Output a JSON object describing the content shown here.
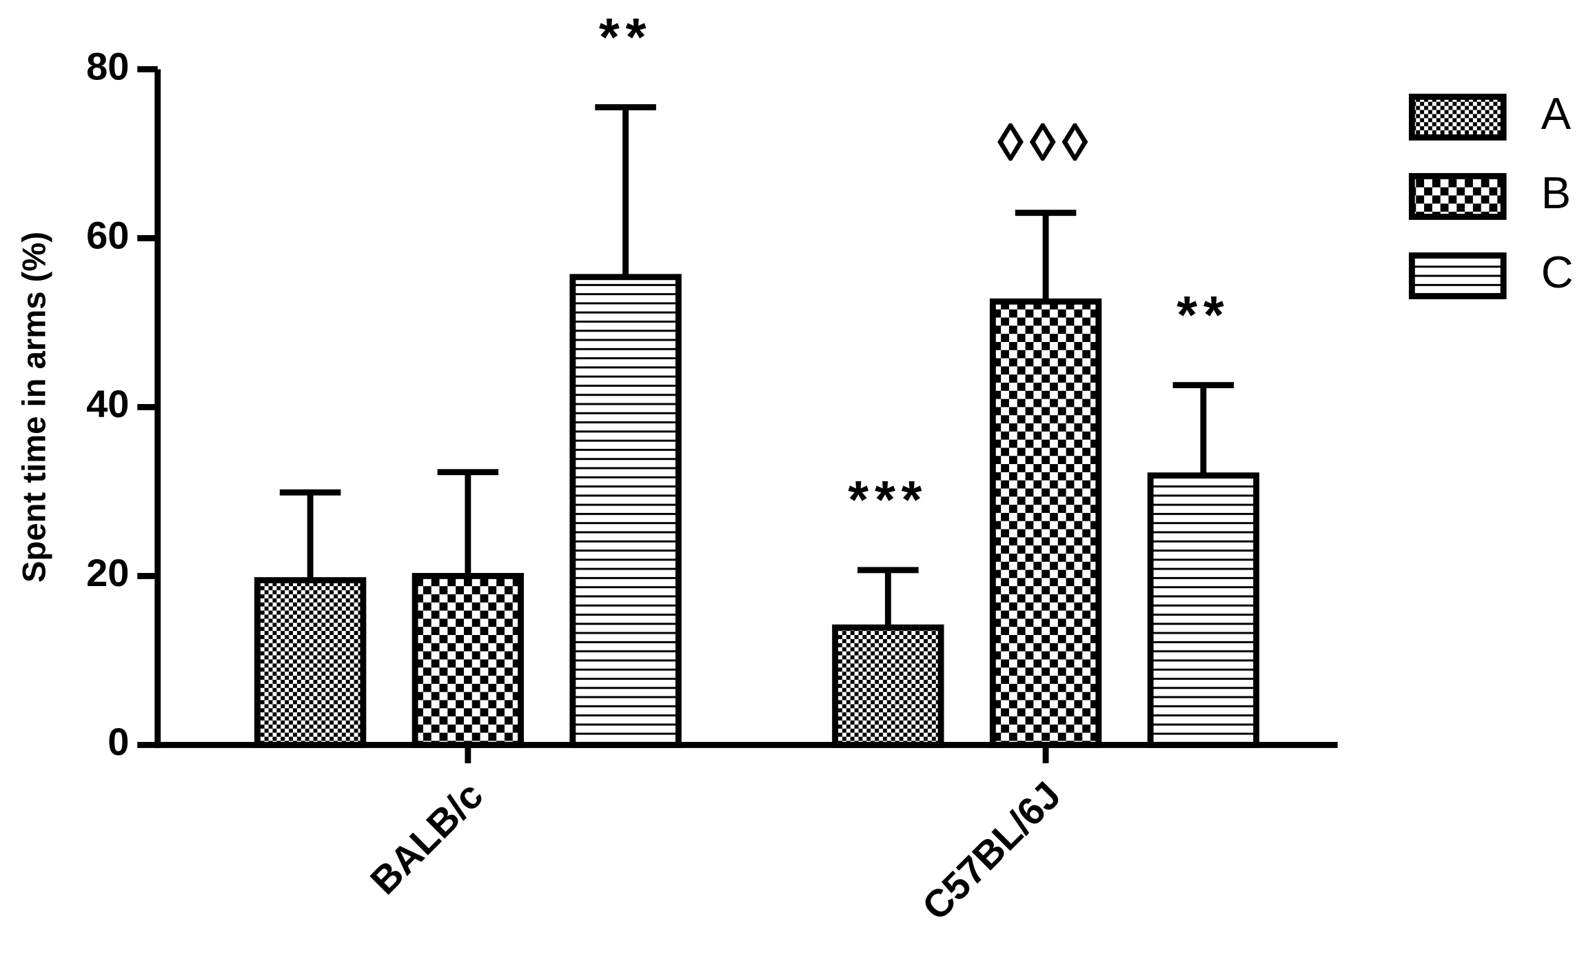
{
  "chart_data": {
    "type": "bar",
    "y_label": "Spent time in arms (%)",
    "categories": [
      "BALB/c",
      "C57BL/6J"
    ],
    "series": [
      {
        "name": "A",
        "color": "#000000",
        "pattern": "fine-checker",
        "values": [
          19.5,
          13.9
        ],
        "errors": [
          10.4,
          6.8
        ],
        "annotations": [
          null,
          "***"
        ]
      },
      {
        "name": "B",
        "color": "#000000",
        "pattern": "checker",
        "values": [
          20,
          52.5
        ],
        "errors": [
          12.3,
          10.5
        ],
        "annotations": [
          null,
          "◊◊◊"
        ]
      },
      {
        "name": "C",
        "color": "#000000",
        "pattern": "hlines",
        "values": [
          55.4,
          31.9
        ],
        "errors": [
          20.1,
          10.7
        ],
        "annotations": [
          "**",
          "**"
        ]
      }
    ],
    "ylim": [
      0,
      80
    ],
    "yticks": [
      0,
      20,
      40,
      60,
      80
    ],
    "grid": false,
    "legend": "right"
  }
}
